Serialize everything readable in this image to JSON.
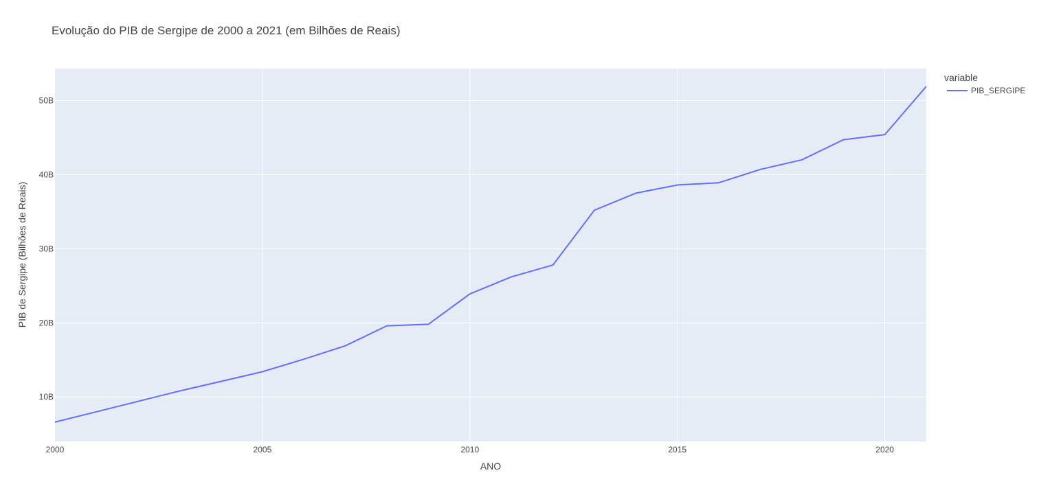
{
  "chart_data": {
    "type": "line",
    "title": "Evolução do PIB de Sergipe de 2000 a 2021 (em Bilhões de Reais)",
    "xlabel": "ANO",
    "ylabel": "PIB de Sergipe (Bilhões de Reais)",
    "xlim": [
      2000,
      2021
    ],
    "ylim": [
      4.0,
      54.3
    ],
    "x_ticks": [
      2000,
      2005,
      2010,
      2015,
      2020
    ],
    "x_tick_labels": [
      "2000",
      "2005",
      "2010",
      "2015",
      "2020"
    ],
    "y_ticks": [
      10,
      20,
      30,
      40,
      50
    ],
    "y_tick_labels": [
      "10B",
      "20B",
      "30B",
      "40B",
      "50B"
    ],
    "grid": true,
    "legend": {
      "title": "variable",
      "placement": "right"
    },
    "series": [
      {
        "name": "PIB_SERGIPE",
        "color": "#636efa",
        "x": [
          2000,
          2001,
          2002,
          2003,
          2004,
          2005,
          2006,
          2007,
          2008,
          2009,
          2010,
          2011,
          2012,
          2013,
          2014,
          2015,
          2016,
          2017,
          2018,
          2019,
          2020,
          2021
        ],
        "y": [
          6.6,
          8.0,
          9.4,
          10.8,
          12.1,
          13.4,
          15.1,
          16.9,
          19.6,
          19.8,
          23.9,
          26.2,
          27.8,
          35.2,
          37.5,
          38.6,
          38.9,
          40.7,
          42.0,
          44.7,
          45.4,
          51.9
        ]
      }
    ]
  }
}
